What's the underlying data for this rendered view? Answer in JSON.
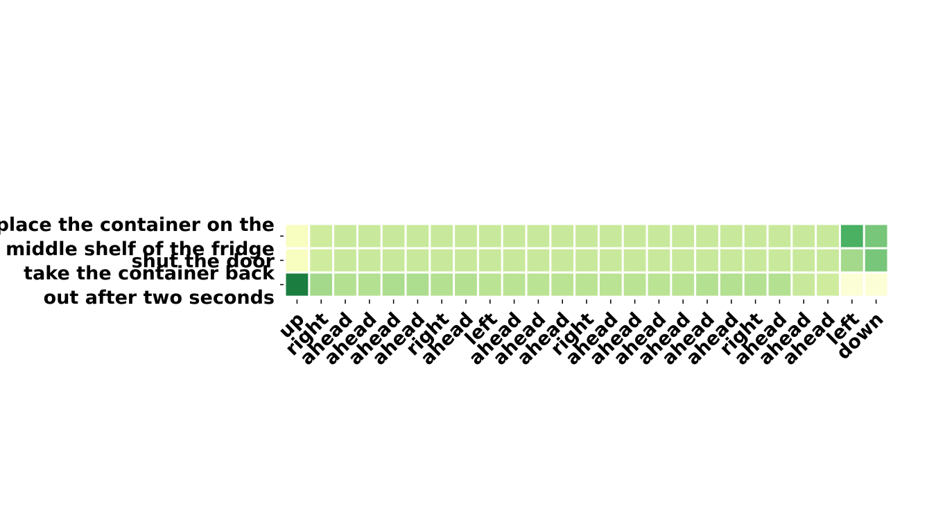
{
  "chart_data": {
    "type": "heatmap",
    "rows": [
      "place the container on the middle shelf of the fridge",
      "shut the door",
      "take the container back out after two seconds"
    ],
    "columns": [
      "up",
      "right",
      "ahead",
      "ahead",
      "ahead",
      "ahead",
      "right",
      "ahead",
      "left",
      "ahead",
      "ahead",
      "ahead",
      "right",
      "ahead",
      "ahead",
      "ahead",
      "ahead",
      "ahead",
      "ahead",
      "right",
      "ahead",
      "ahead",
      "ahead",
      "left",
      "down"
    ],
    "values": [
      [
        0.1,
        0.28,
        0.3,
        0.3,
        0.3,
        0.3,
        0.3,
        0.3,
        0.3,
        0.3,
        0.3,
        0.3,
        0.3,
        0.3,
        0.3,
        0.3,
        0.3,
        0.3,
        0.3,
        0.3,
        0.3,
        0.3,
        0.3,
        0.6,
        0.5
      ],
      [
        0.1,
        0.28,
        0.3,
        0.3,
        0.3,
        0.3,
        0.3,
        0.3,
        0.3,
        0.3,
        0.3,
        0.3,
        0.3,
        0.3,
        0.3,
        0.3,
        0.3,
        0.3,
        0.3,
        0.3,
        0.3,
        0.3,
        0.3,
        0.4,
        0.5
      ],
      [
        0.78,
        0.4,
        0.36,
        0.36,
        0.38,
        0.38,
        0.36,
        0.36,
        0.34,
        0.34,
        0.34,
        0.34,
        0.34,
        0.34,
        0.34,
        0.34,
        0.34,
        0.36,
        0.36,
        0.36,
        0.36,
        0.3,
        0.28,
        0.04,
        0.04
      ]
    ],
    "colormap": "YlGn",
    "colorbar": false
  }
}
